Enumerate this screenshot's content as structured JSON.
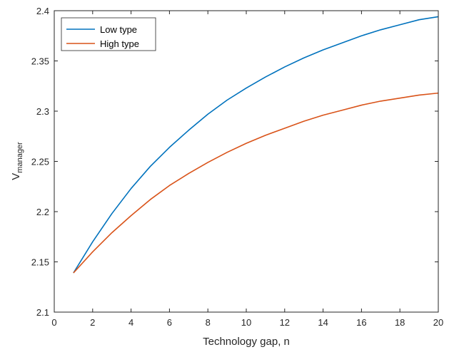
{
  "chart_data": {
    "type": "line",
    "title": "",
    "xlabel": "Technology gap, n",
    "ylabel": "V",
    "ylabel_subscript": "manager",
    "xlim": [
      0,
      20
    ],
    "ylim": [
      2.1,
      2.4
    ],
    "xticks": [
      0,
      2,
      4,
      6,
      8,
      10,
      12,
      14,
      16,
      18,
      20
    ],
    "yticks": [
      2.1,
      2.15,
      2.2,
      2.25,
      2.3,
      2.35,
      2.4
    ],
    "ytick_labels": [
      "2.1",
      "2.15",
      "2.2",
      "2.25",
      "2.3",
      "2.35",
      "2.4"
    ],
    "grid": false,
    "legend_position": "top-left",
    "x": [
      1,
      2,
      3,
      4,
      5,
      6,
      7,
      8,
      9,
      10,
      11,
      12,
      13,
      14,
      15,
      16,
      17,
      18,
      19,
      20
    ],
    "series": [
      {
        "name": "Low type",
        "color": "#0072BD",
        "values": [
          2.139,
          2.17,
          2.198,
          2.223,
          2.245,
          2.264,
          2.281,
          2.297,
          2.311,
          2.323,
          2.334,
          2.344,
          2.353,
          2.361,
          2.368,
          2.375,
          2.381,
          2.386,
          2.391,
          2.394
        ]
      },
      {
        "name": "High type",
        "color": "#D95319",
        "values": [
          2.139,
          2.16,
          2.179,
          2.196,
          2.212,
          2.226,
          2.238,
          2.249,
          2.259,
          2.268,
          2.276,
          2.283,
          2.29,
          2.296,
          2.301,
          2.306,
          2.31,
          2.313,
          2.316,
          2.318
        ]
      }
    ]
  }
}
